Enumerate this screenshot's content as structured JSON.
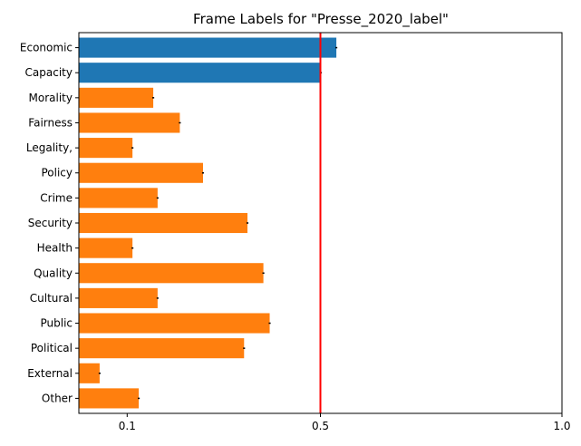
{
  "chart_data": {
    "type": "bar",
    "orientation": "horizontal",
    "title": "Frame Labels for \"Presse_2020_label\"",
    "xlabel": "",
    "ylabel": "",
    "categories": [
      "Economic",
      "Capacity",
      "Morality",
      "Fairness",
      "Legality,",
      "Policy",
      "Crime",
      "Security",
      "Health",
      "Quality",
      "Cultural",
      "Public",
      "Political",
      "External",
      "Other"
    ],
    "values": [
      0.533,
      0.501,
      0.154,
      0.209,
      0.111,
      0.257,
      0.163,
      0.349,
      0.111,
      0.382,
      0.163,
      0.395,
      0.342,
      0.043,
      0.124
    ],
    "errors": [
      0.002,
      0.002,
      0.002,
      0.002,
      0.002,
      0.002,
      0.002,
      0.002,
      0.002,
      0.002,
      0.002,
      0.002,
      0.002,
      0.002,
      0.002
    ],
    "highlight": [
      "Economic",
      "Capacity"
    ],
    "xlim": [
      0,
      1.0
    ],
    "xticks": [
      0.1,
      0.5,
      1.0
    ],
    "xtick_labels": [
      "0.1",
      "0.5",
      "1.0"
    ],
    "reference_line": 0.5,
    "grid": false,
    "colors": {
      "highlight": "#1f77b4",
      "default": "#ff7f0e",
      "reference": "#ff0000",
      "error": "#000000"
    }
  }
}
